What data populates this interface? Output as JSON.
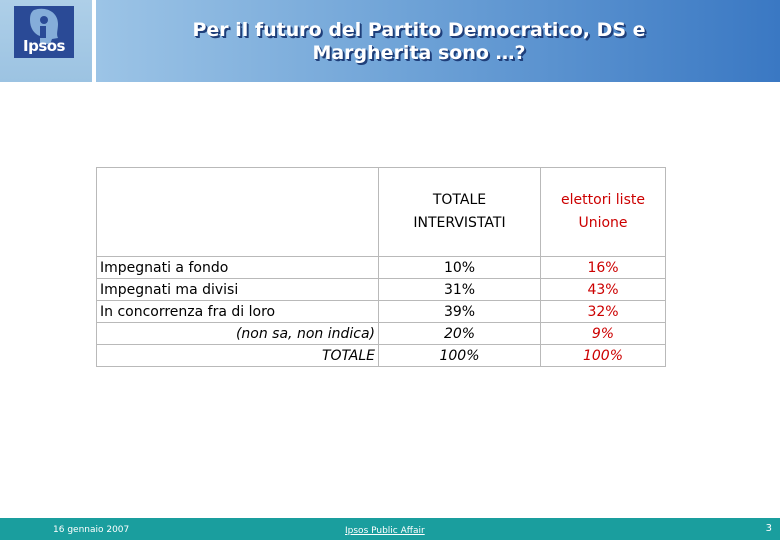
{
  "logo": {
    "text": "Ipsos"
  },
  "header": {
    "title_line1": "Per il futuro del Partito Democratico, DS e",
    "title_line2": "Margherita sono …?"
  },
  "table": {
    "columns": [
      "",
      "TOTALE INTERVISTATI",
      "elettori liste Unione"
    ],
    "col2_line1": "TOTALE",
    "col2_line2": "INTERVISTATI",
    "col3_line1": "elettori liste",
    "col3_line2": "Unione",
    "rows": [
      {
        "label": "Impegnati a fondo",
        "totale": "10%",
        "unione": "16%"
      },
      {
        "label": "Impegnati ma divisi",
        "totale": "31%",
        "unione": "43%"
      },
      {
        "label": "In concorrenza fra di loro",
        "totale": "39%",
        "unione": "32%"
      },
      {
        "label": "(non sa, non indica)",
        "totale": "20%",
        "unione": "9%"
      },
      {
        "label": "TOTALE",
        "totale": "100%",
        "unione": "100%"
      }
    ]
  },
  "footer": {
    "date": "16 gennaio 2007",
    "link": "Ipsos Public Affair",
    "page": "3"
  },
  "colors": {
    "unione": "#cc0000",
    "footer": "#1a9e9e",
    "header": "#3a78c3"
  }
}
